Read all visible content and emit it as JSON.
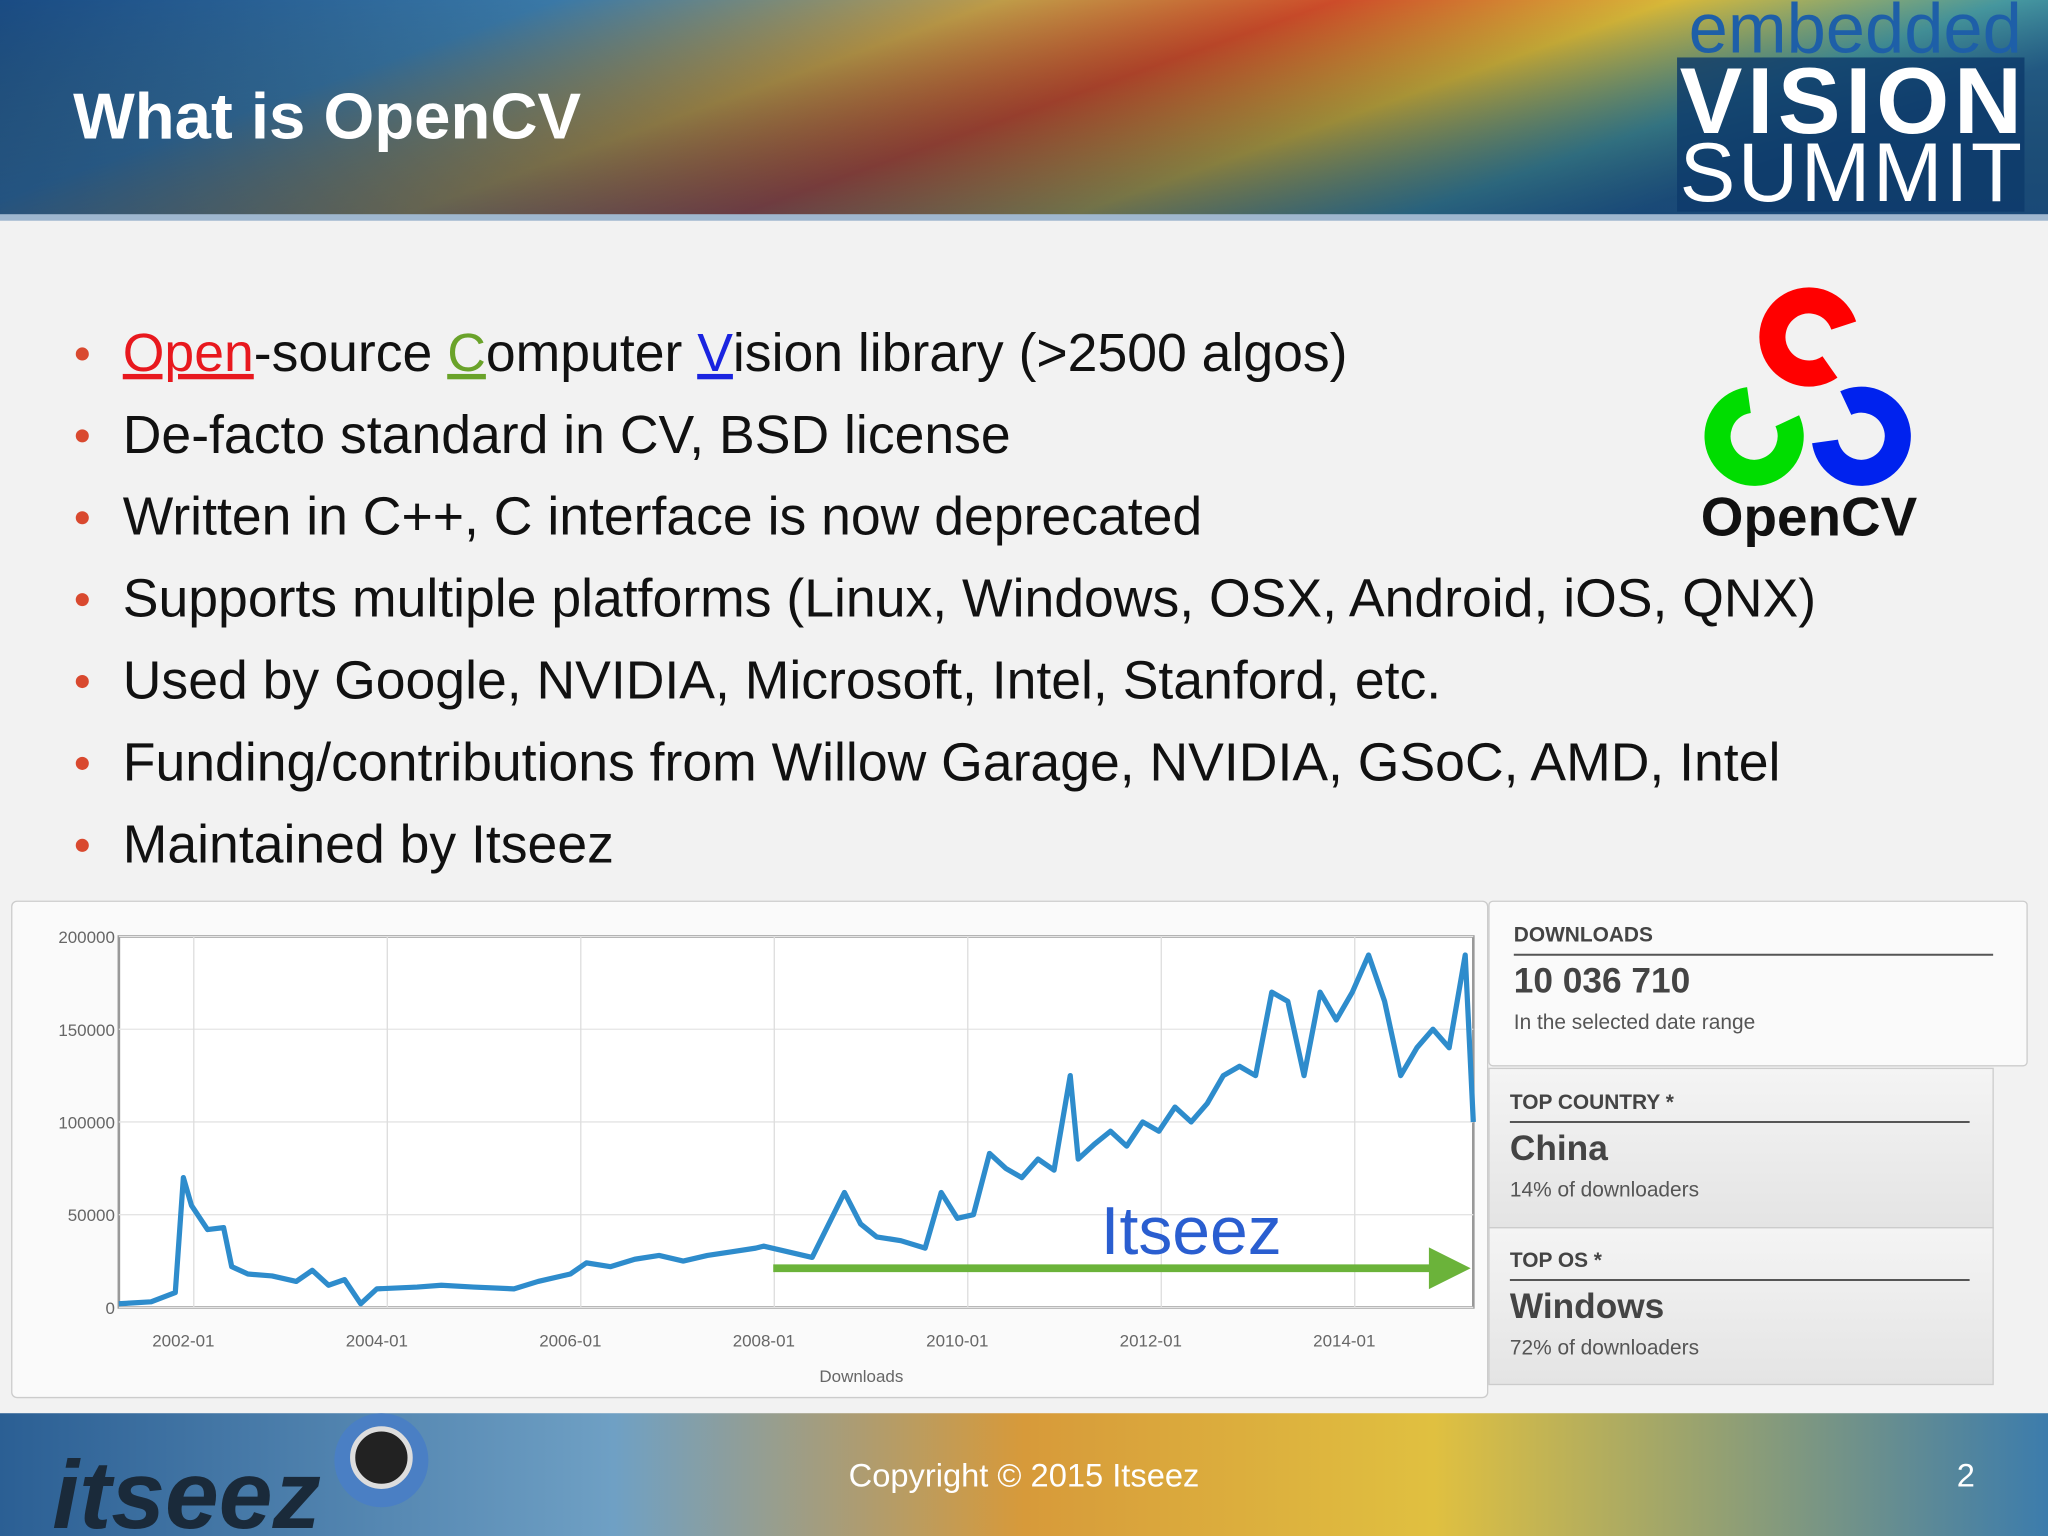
{
  "header": {
    "title": "What is OpenCV",
    "logo": [
      "embedded",
      "VISION",
      "SUMMIT"
    ]
  },
  "bullets": [
    {
      "segments": [
        {
          "text": "Open",
          "color": "#e8181e"
        },
        {
          "text": "-source "
        },
        {
          "text": "C",
          "color": "#6aa32a"
        },
        {
          "text": "omputer "
        },
        {
          "text": "V",
          "color": "#1a24e0"
        },
        {
          "text": "ision library (>2500 algos)"
        }
      ]
    },
    {
      "segments": [
        {
          "text": "De-facto standard in CV, BSD license"
        }
      ]
    },
    {
      "segments": [
        {
          "text": "Written in C++, C interface is now deprecated"
        }
      ]
    },
    {
      "segments": [
        {
          "text": "Supports multiple platforms (Linux, Windows, OSX, Android, iOS, QNX)"
        }
      ]
    },
    {
      "segments": [
        {
          "text": "Used by Google, NVIDIA, Microsoft, Intel, Stanford, etc."
        }
      ]
    },
    {
      "segments": [
        {
          "text": "Funding/contributions from Willow Garage, NVIDIA, GSoC, AMD, Intel"
        }
      ]
    },
    {
      "segments": [
        {
          "text": "Maintained by Itseez"
        }
      ]
    }
  ],
  "opencv_logo": "OpenCV",
  "chart_data": {
    "type": "line",
    "xlabel": "Downloads",
    "annotation": "Itseez",
    "color": "#2e8ccc",
    "grid": true,
    "xlim": [
      "2001-05",
      "2015-05"
    ],
    "xticks": [
      "2002-01",
      "2004-01",
      "2006-01",
      "2008-01",
      "2010-01",
      "2012-01",
      "2014-01"
    ],
    "ylim": [
      0,
      200000
    ],
    "yticks": [
      0,
      50000,
      100000,
      150000,
      200000
    ],
    "x": [
      "2001-05",
      "2001-09",
      "2001-12",
      "2002-01",
      "2002-02",
      "2002-04",
      "2002-06",
      "2002-07",
      "2002-09",
      "2002-12",
      "2003-03",
      "2003-05",
      "2003-07",
      "2003-09",
      "2003-11",
      "2004-01",
      "2004-06",
      "2004-09",
      "2005-01",
      "2005-06",
      "2005-09",
      "2006-01",
      "2006-03",
      "2006-06",
      "2006-09",
      "2006-12",
      "2007-03",
      "2007-06",
      "2007-09",
      "2007-12",
      "2008-01",
      "2008-04",
      "2008-07",
      "2008-11",
      "2009-01",
      "2009-03",
      "2009-06",
      "2009-09",
      "2009-11",
      "2010-01",
      "2010-03",
      "2010-05",
      "2010-07",
      "2010-09",
      "2010-11",
      "2011-01",
      "2011-03",
      "2011-04",
      "2011-06",
      "2011-08",
      "2011-10",
      "2011-12",
      "2012-02",
      "2012-04",
      "2012-06",
      "2012-08",
      "2012-10",
      "2012-12",
      "2013-02",
      "2013-04",
      "2013-06",
      "2013-08",
      "2013-10",
      "2013-12",
      "2014-02",
      "2014-04",
      "2014-06",
      "2014-08",
      "2014-10",
      "2014-12",
      "2015-02",
      "2015-04",
      "2015-05"
    ],
    "values": [
      2000,
      3000,
      8000,
      70000,
      55000,
      42000,
      43000,
      22000,
      18000,
      17000,
      14000,
      20000,
      12000,
      15000,
      2000,
      10000,
      11000,
      12000,
      11000,
      10000,
      14000,
      18000,
      24000,
      22000,
      26000,
      28000,
      25000,
      28000,
      30000,
      32000,
      33000,
      30000,
      27000,
      62000,
      45000,
      38000,
      36000,
      32000,
      62000,
      48000,
      50000,
      83000,
      75000,
      70000,
      80000,
      74000,
      125000,
      80000,
      88000,
      95000,
      87000,
      100000,
      95000,
      108000,
      100000,
      110000,
      125000,
      130000,
      125000,
      170000,
      165000,
      125000,
      170000,
      155000,
      170000,
      190000,
      165000,
      125000,
      140000,
      150000,
      140000,
      190000,
      100000
    ]
  },
  "stats": [
    {
      "label": "DOWNLOADS",
      "value": "10 036 710",
      "note": "In the selected date range"
    },
    {
      "label": "TOP COUNTRY *",
      "value": "China",
      "note": "14% of downloaders"
    },
    {
      "label": "TOP OS *",
      "value": "Windows",
      "note": "72% of downloaders"
    }
  ],
  "footer": {
    "copyright": "Copyright © 2015 Itseez",
    "page": "2",
    "brand": "itseez"
  }
}
